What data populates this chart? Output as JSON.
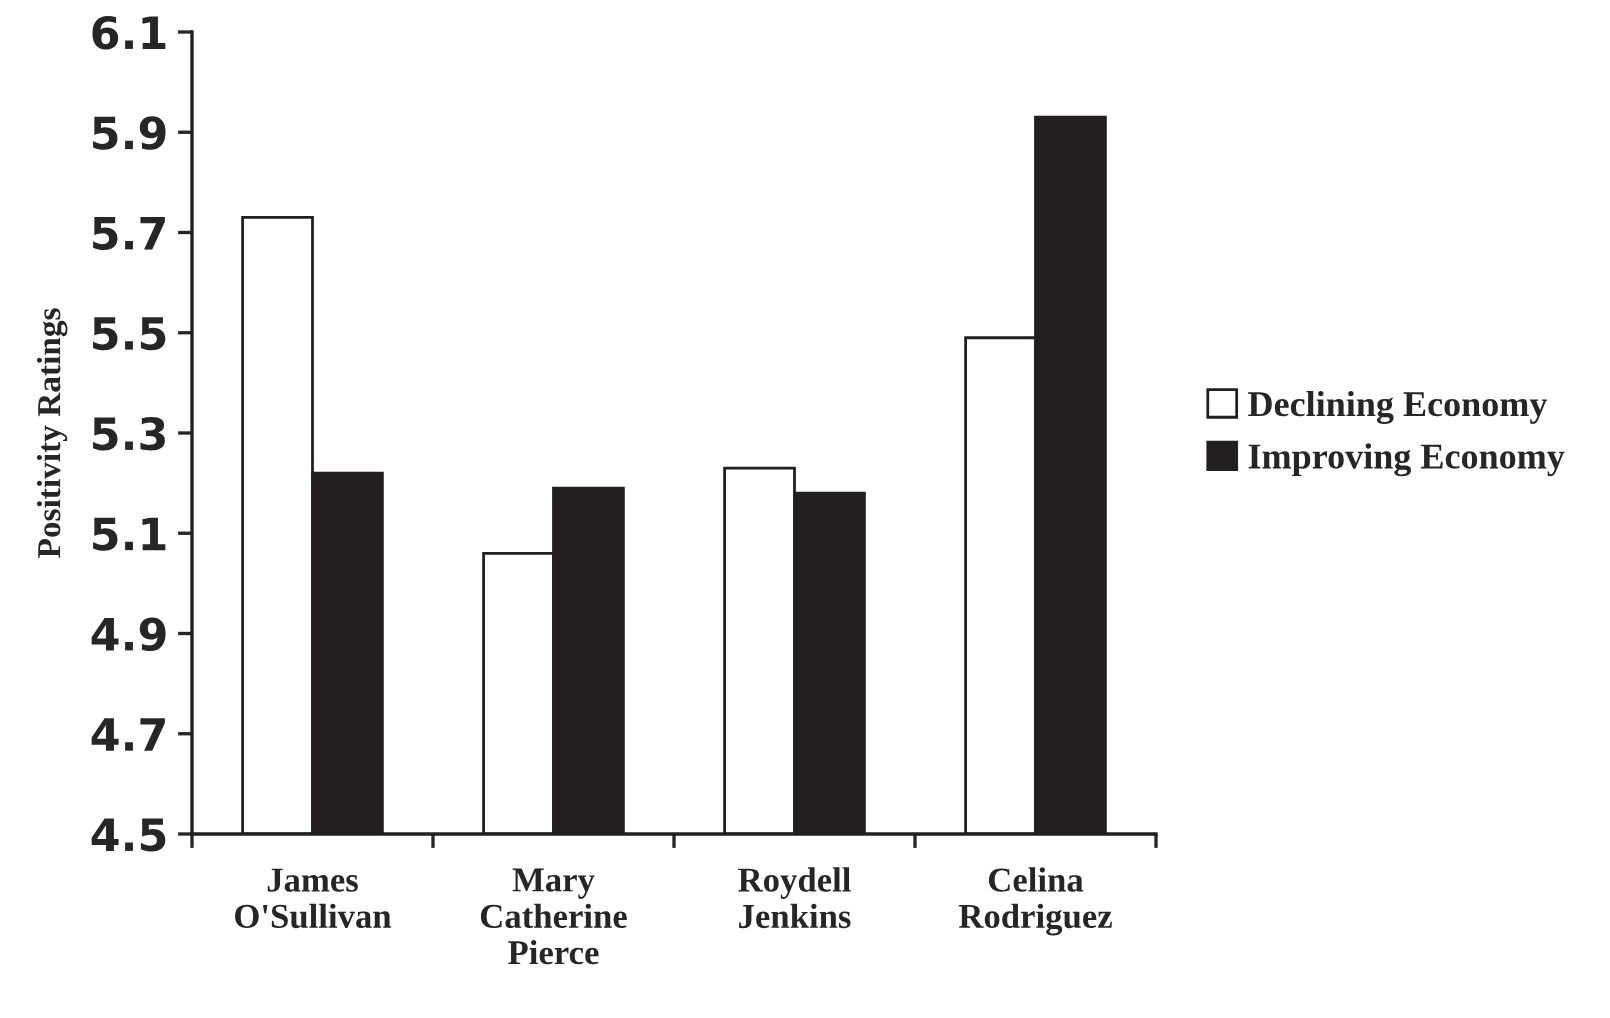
{
  "chart_data": {
    "type": "bar",
    "ylabel": "Positivity Ratings",
    "categories": [
      "James\nO'Sullivan",
      "Mary\nCatherine\nPierce",
      "Roydell\nJenkins",
      "Celina\nRodriguez"
    ],
    "series": [
      {
        "name": "Declining Economy",
        "color": "#ffffff",
        "values": [
          5.73,
          5.06,
          5.23,
          5.49
        ]
      },
      {
        "name": "Improving Economy",
        "color": "#231f20",
        "values": [
          5.22,
          5.19,
          5.18,
          5.93
        ]
      }
    ],
    "ylim": [
      4.5,
      6.1
    ],
    "yticks": [
      4.5,
      4.7,
      4.9,
      5.1,
      5.3,
      5.5,
      5.7,
      5.9,
      6.1
    ],
    "grid": false,
    "legend": "right"
  }
}
